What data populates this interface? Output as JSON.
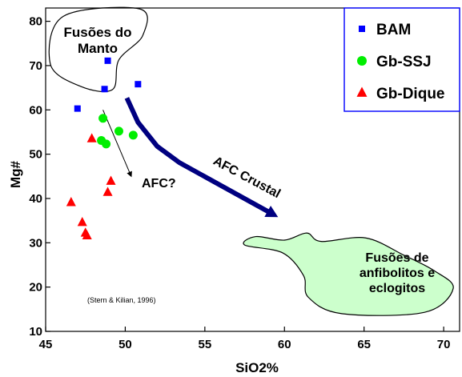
{
  "chart_data": {
    "type": "scatter",
    "title": "",
    "xlabel": "SiO2%",
    "ylabel": "Mg#",
    "xlim": [
      45,
      71
    ],
    "ylim": [
      10,
      83
    ],
    "xticks": [
      45,
      50,
      55,
      60,
      65,
      70
    ],
    "yticks": [
      10,
      20,
      30,
      40,
      50,
      60,
      70,
      80
    ],
    "grid": false,
    "legend_position": "top-right",
    "series": [
      {
        "name": "BAM",
        "marker": "square",
        "color": "#0000ff",
        "points": [
          [
            48.9,
            71.1
          ],
          [
            48.7,
            64.7
          ],
          [
            50.8,
            65.8
          ],
          [
            47.0,
            60.3
          ]
        ]
      },
      {
        "name": "Gb-SSJ",
        "marker": "circle",
        "color": "#00ee00",
        "points": [
          [
            48.6,
            58.1
          ],
          [
            49.6,
            55.2
          ],
          [
            50.5,
            54.3
          ],
          [
            48.5,
            53.1
          ],
          [
            48.8,
            52.3
          ]
        ]
      },
      {
        "name": "Gb-Dique",
        "marker": "triangle",
        "color": "#ff0000",
        "points": [
          [
            47.9,
            53.5
          ],
          [
            49.1,
            43.9
          ],
          [
            48.9,
            41.4
          ],
          [
            46.6,
            39.1
          ],
          [
            47.3,
            34.6
          ],
          [
            47.5,
            32.2
          ],
          [
            47.6,
            31.6
          ]
        ]
      }
    ],
    "regions": [
      {
        "label_lines": [
          "Fusões do",
          "Manto"
        ],
        "fill": "#ffffff",
        "outline": [
          [
            45.3,
            70.3
          ],
          [
            46.1,
            81.1
          ],
          [
            50.9,
            82.8
          ],
          [
            51.1,
            76.8
          ],
          [
            49.6,
            71.3
          ],
          [
            49.2,
            64.6
          ],
          [
            47.2,
            65.3
          ]
        ]
      },
      {
        "label_lines": [
          "Fusões de",
          "anfibolitos e",
          "eclogitos"
        ],
        "fill": "#ccffcc",
        "outline": [
          [
            59.9,
            27.7
          ],
          [
            57.5,
            29.5
          ],
          [
            58.2,
            31.4
          ],
          [
            60.0,
            30.6
          ],
          [
            61.4,
            32.2
          ],
          [
            62.3,
            30.3
          ],
          [
            65.1,
            31.1
          ],
          [
            67.5,
            27.2
          ],
          [
            69.4,
            23.7
          ],
          [
            70.6,
            19.7
          ],
          [
            68.8,
            14.3
          ],
          [
            63.6,
            14.0
          ],
          [
            61.5,
            17.7
          ],
          [
            61.2,
            22.6
          ]
        ]
      }
    ],
    "trends": [
      {
        "label": "AFC Crustal",
        "color": "#000080",
        "points": [
          [
            50.1,
            62.7
          ],
          [
            50.8,
            57.2
          ],
          [
            52.0,
            51.8
          ],
          [
            53.4,
            48.1
          ],
          [
            59.6,
            35.8
          ]
        ]
      },
      {
        "label": "AFC?",
        "color": "#000000",
        "points": [
          [
            48.6,
            60.0
          ],
          [
            50.4,
            44.8
          ]
        ]
      }
    ],
    "annotations": [
      "(Stern & Kilian, 1996)"
    ]
  }
}
